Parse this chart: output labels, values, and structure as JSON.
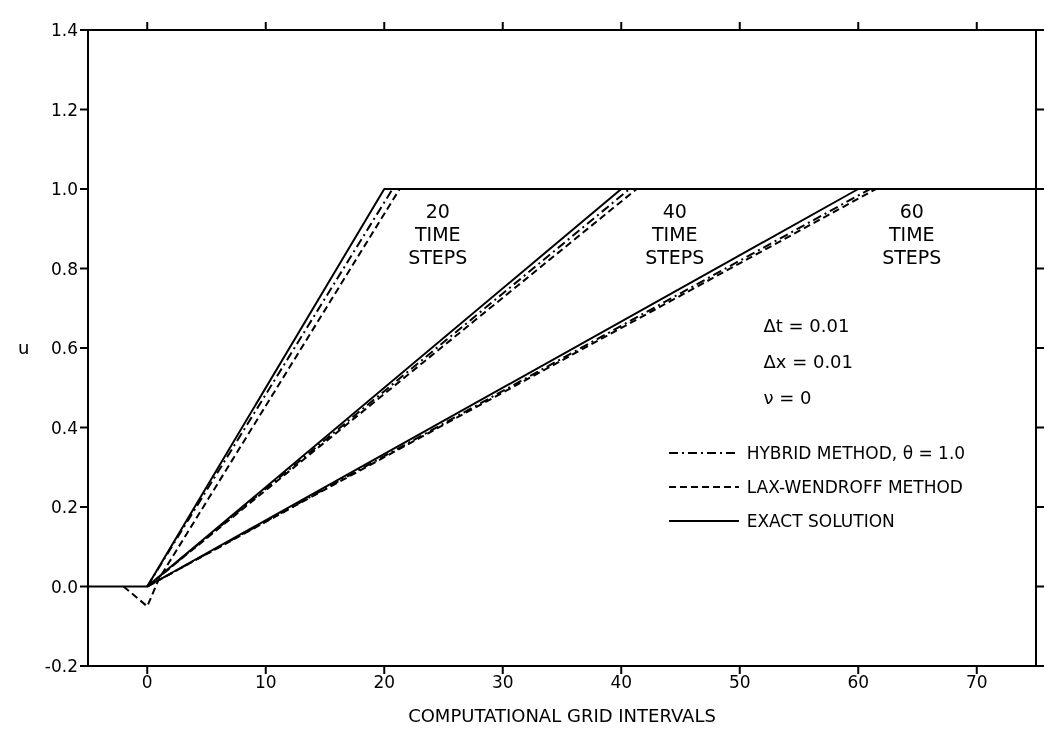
{
  "chart_data": {
    "type": "line",
    "xlabel": "COMPUTATIONAL GRID INTERVALS",
    "ylabel": "u",
    "xlim": [
      -5,
      75
    ],
    "xticks": [
      0,
      10,
      20,
      30,
      40,
      50,
      60,
      70
    ],
    "ylim": [
      -0.2,
      1.4
    ],
    "yticks": [
      -0.2,
      {
        "value": 0,
        "label": "0.0"
      },
      0.2,
      0.4,
      0.6,
      0.8,
      {
        "value": 1,
        "label": "1.0"
      },
      1.2,
      1.4
    ],
    "legend": "bottom right",
    "marker": "none",
    "series": [
      {
        "name": "HYBRID METHOD, θ = 1.0",
        "color": "#000000",
        "line_style": "dashdot",
        "x": [
          0,
          20.7,
          75
        ],
        "values": [
          0,
          1,
          1
        ]
      },
      {
        "color": "#000000",
        "line_style": "dashdot",
        "x": [
          0,
          40.7
        ],
        "values": [
          0,
          1
        ]
      },
      {
        "color": "#000000",
        "line_style": "dashdot",
        "x": [
          0,
          61
        ],
        "values": [
          0,
          1
        ]
      },
      {
        "name": "LAX-WENDROFF METHOD",
        "color": "#000000",
        "line_style": "dashed",
        "x": [
          -2,
          0,
          1,
          21.3,
          75
        ],
        "values": [
          0,
          -0.05,
          0.02,
          1,
          1
        ]
      },
      {
        "color": "#000000",
        "line_style": "dashed",
        "x": [
          0,
          41.3
        ],
        "values": [
          0,
          1
        ]
      },
      {
        "color": "#000000",
        "line_style": "dashed",
        "x": [
          0,
          61.5
        ],
        "values": [
          0,
          1
        ]
      },
      {
        "name": "EXACT SOLUTION",
        "color": "#000000",
        "line_style": "solid",
        "x": [
          -5,
          0,
          20,
          75
        ],
        "values": [
          0,
          0,
          1,
          1
        ]
      },
      {
        "color": "#000000",
        "line_style": "solid",
        "x": [
          0,
          40
        ],
        "values": [
          0,
          1
        ]
      },
      {
        "color": "#000000",
        "line_style": "solid",
        "x": [
          0,
          60
        ],
        "values": [
          0,
          1
        ]
      }
    ],
    "annotations": [
      "20 TIME STEPS",
      "40 TIME STEPS",
      "60 TIME STEPS",
      "Δt = 0.01",
      "Δx = 0.01",
      "ν = 0"
    ]
  }
}
